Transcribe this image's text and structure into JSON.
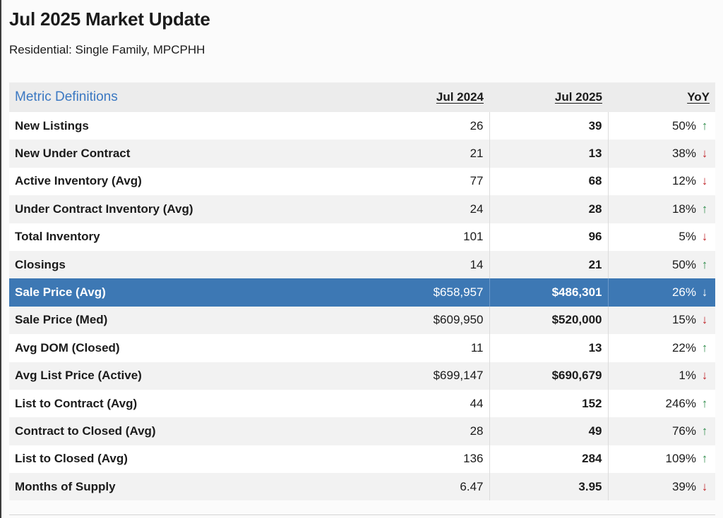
{
  "header": {
    "title": "Jul 2025 Market Update",
    "subtitle": "Residential: Single Family, MPCPHH"
  },
  "table": {
    "headers": {
      "metric": "Metric Definitions",
      "prior": "Jul 2024",
      "current": "Jul 2025",
      "yoy": "YoY"
    },
    "rows": [
      {
        "metric": "New Listings",
        "prior": "26",
        "current": "39",
        "yoy": "50%",
        "dir": "up"
      },
      {
        "metric": "New Under Contract",
        "prior": "21",
        "current": "13",
        "yoy": "38%",
        "dir": "down"
      },
      {
        "metric": "Active Inventory (Avg)",
        "prior": "77",
        "current": "68",
        "yoy": "12%",
        "dir": "down"
      },
      {
        "metric": "Under Contract Inventory (Avg)",
        "prior": "24",
        "current": "28",
        "yoy": "18%",
        "dir": "up"
      },
      {
        "metric": "Total Inventory",
        "prior": "101",
        "current": "96",
        "yoy": "5%",
        "dir": "down"
      },
      {
        "metric": "Closings",
        "prior": "14",
        "current": "21",
        "yoy": "50%",
        "dir": "up"
      },
      {
        "metric": "Sale Price (Avg)",
        "prior": "$658,957",
        "current": "$486,301",
        "yoy": "26%",
        "dir": "down",
        "highlighted": true
      },
      {
        "metric": "Sale Price (Med)",
        "prior": "$609,950",
        "current": "$520,000",
        "yoy": "15%",
        "dir": "down"
      },
      {
        "metric": "Avg DOM (Closed)",
        "prior": "11",
        "current": "13",
        "yoy": "22%",
        "dir": "up"
      },
      {
        "metric": "Avg List Price (Active)",
        "prior": "$699,147",
        "current": "$690,679",
        "yoy": "1%",
        "dir": "down"
      },
      {
        "metric": "List to Contract (Avg)",
        "prior": "44",
        "current": "152",
        "yoy": "246%",
        "dir": "up"
      },
      {
        "metric": "Contract to Closed (Avg)",
        "prior": "28",
        "current": "49",
        "yoy": "76%",
        "dir": "up"
      },
      {
        "metric": "List to Closed (Avg)",
        "prior": "136",
        "current": "284",
        "yoy": "109%",
        "dir": "up"
      },
      {
        "metric": "Months of Supply",
        "prior": "6.47",
        "current": "3.95",
        "yoy": "39%",
        "dir": "down"
      }
    ]
  },
  "icons": {
    "up": "up-arrow-icon",
    "down": "down-arrow-icon"
  },
  "colors": {
    "link": "#3b78c2",
    "highlight_row": "#3d78b4",
    "up": "#2e8b4a",
    "down": "#c0282d"
  }
}
